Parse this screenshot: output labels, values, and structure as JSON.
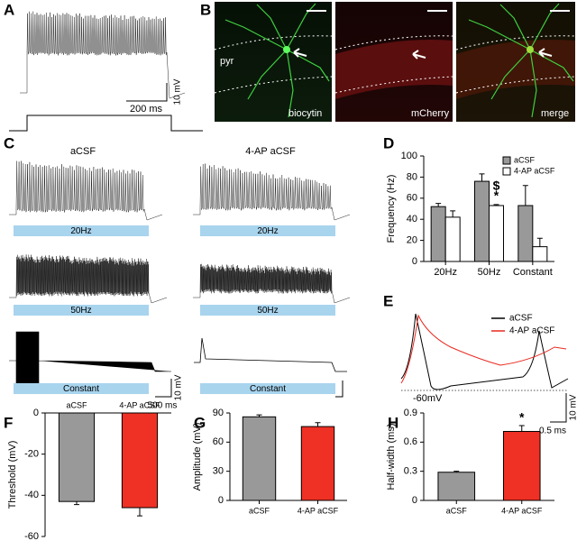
{
  "panel_labels": [
    "A",
    "B",
    "C",
    "D",
    "E",
    "F",
    "G",
    "H"
  ],
  "panel_a": {
    "scale_x": "200 ms",
    "scale_y": "10 mV"
  },
  "panel_b": {
    "region": "pyr",
    "images": [
      "biocytin",
      "mCherry",
      "merge"
    ]
  },
  "panel_c": {
    "conditions": [
      "aCSF",
      "4-AP aCSF"
    ],
    "stimuli": [
      "20Hz",
      "50Hz",
      "Constant"
    ],
    "scale_x": "500 ms",
    "scale_y": "10 mV"
  },
  "panel_e": {
    "legend": [
      {
        "name": "aCSF",
        "color": "#000000"
      },
      {
        "name": "4-AP aCSF",
        "color": "#e8281e"
      }
    ],
    "baseline": "-60mV",
    "scale_x": "0.5 ms",
    "scale_y": "10 mV"
  },
  "chart_data": [
    {
      "type": "bar",
      "ylabel": "Frequency (Hz)",
      "categories": [
        "20Hz",
        "50Hz",
        "Constant"
      ],
      "series": [
        {
          "name": "aCSF",
          "color": "#999999",
          "values": [
            52,
            76,
            53
          ],
          "errors": [
            3,
            7,
            19
          ]
        },
        {
          "name": "4-AP aCSF",
          "color": "#ffffff",
          "values": [
            42,
            53,
            14
          ],
          "errors": [
            6,
            1,
            8
          ]
        }
      ],
      "ylim": [
        0,
        100
      ],
      "yticks": [
        0,
        20,
        40,
        60,
        80,
        100
      ],
      "annotations": [
        "$",
        "*"
      ],
      "legend": "top-right"
    },
    {
      "type": "bar",
      "ylabel": "Threshold (mV)",
      "categories": [
        "aCSF",
        "4-AP aCSF"
      ],
      "values": [
        -43,
        -46
      ],
      "errors": [
        1.5,
        4
      ],
      "colors": [
        "#999999",
        "#ee3124"
      ],
      "ylim": [
        -60,
        0
      ],
      "yticks": [
        0,
        -20,
        -40,
        -60
      ]
    },
    {
      "type": "bar",
      "ylabel": "Amplitude (mV)",
      "categories": [
        "aCSF",
        "4-AP aCSF"
      ],
      "values": [
        86,
        76
      ],
      "errors": [
        2,
        4
      ],
      "colors": [
        "#999999",
        "#ee3124"
      ],
      "ylim": [
        0,
        90
      ],
      "yticks": [
        0,
        30,
        60,
        90
      ]
    },
    {
      "type": "bar",
      "ylabel": "Half-width (ms)",
      "categories": [
        "aCSF",
        "4-AP aCSF"
      ],
      "values": [
        0.29,
        0.71
      ],
      "errors": [
        0.01,
        0.06
      ],
      "colors": [
        "#999999",
        "#ee3124"
      ],
      "ylim": [
        0,
        0.9
      ],
      "yticks": [
        0,
        0.3,
        0.6,
        0.9
      ],
      "annotations": [
        "*"
      ]
    }
  ]
}
